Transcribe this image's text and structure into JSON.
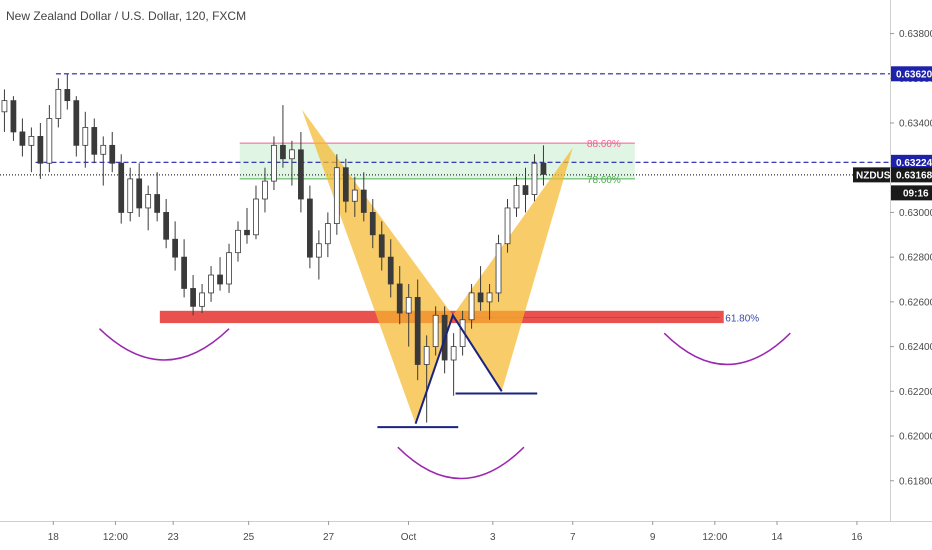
{
  "chart_data": {
    "type": "candlestick",
    "title": "New Zealand Dollar / U.S. Dollar, 120, FXCM",
    "symbol": "NZDUSD",
    "price_scale": {
      "range": [
        0.6162,
        0.6395
      ],
      "ticks": [
        "0.63800",
        "0.63600",
        "0.63400",
        "0.63200",
        "0.63000",
        "0.62800",
        "0.62600",
        "0.62400",
        "0.62200",
        "0.62000",
        "0.61800"
      ]
    },
    "x_range": [
      0,
      100
    ],
    "time_axis": [
      {
        "label": "18",
        "x": 6
      },
      {
        "label": "12:00",
        "x": 13
      },
      {
        "label": "23",
        "x": 19.5
      },
      {
        "label": "25",
        "x": 28
      },
      {
        "label": "27",
        "x": 37
      },
      {
        "label": "Oct",
        "x": 46
      },
      {
        "label": "3",
        "x": 55.5
      },
      {
        "label": "7",
        "x": 64.5
      },
      {
        "label": "9",
        "x": 73.5
      },
      {
        "label": "12:00",
        "x": 80.5
      },
      {
        "label": "14",
        "x": 87.5
      },
      {
        "label": "16",
        "x": 96.5
      }
    ],
    "price_tags": [
      {
        "label": "0.63620",
        "value": 0.6362,
        "color": "#1e22aa"
      },
      {
        "label": "0.63224",
        "value": 0.63224,
        "color": "#1e22aa"
      },
      {
        "label": "NZDUSD",
        "value": 0.63168,
        "color": "#1a1a1a"
      },
      {
        "label": "0.63168",
        "value": 0.63168,
        "color": "#1a1a1a"
      },
      {
        "label": "09:16",
        "value": 0.63168,
        "color": "#1a1a1a"
      }
    ],
    "levels": [
      {
        "name": "high",
        "value": 0.6362,
        "x_start": 6.3,
        "style": "dashed",
        "color": "#1e22aa"
      },
      {
        "name": "resistance",
        "value": 0.63224,
        "x_start": 4,
        "style": "dashed",
        "color": "#1e22aa"
      },
      {
        "name": "last-price",
        "value": 0.63168,
        "x_start": 0,
        "style": "dotted",
        "color": "#333333"
      },
      {
        "name": "fib-886",
        "value": 0.6331,
        "x_start": 27,
        "x_end": 71.5,
        "style": "solid",
        "color": "#f06292",
        "label": "88.60%"
      },
      {
        "name": "fib-786",
        "value": 0.6315,
        "x_start": 27,
        "x_end": 71.5,
        "style": "solid",
        "color": "#4caf50",
        "label": "78.60%"
      },
      {
        "name": "fib-618",
        "value": 0.6253,
        "x_start": 49.5,
        "x_end": 81,
        "style": "solid",
        "color": "#3949ab",
        "label": "61.80%"
      }
    ],
    "support_zone": {
      "x_start": 18,
      "x_end": 81.5,
      "y_top": 0.6256,
      "y_bottom": 0.62505,
      "color": "#e53935"
    },
    "bat_pattern": {
      "color": "#f5b82e",
      "left_wing": [
        [
          34,
          0.6346
        ],
        [
          46.8,
          0.62055
        ],
        [
          51,
          0.6254
        ]
      ],
      "right_wing": [
        [
          51,
          0.6254
        ],
        [
          56.5,
          0.622
        ],
        [
          64.5,
          0.6329
        ]
      ]
    },
    "inner_lines": [
      {
        "points": [
          [
            46.8,
            0.62055
          ],
          [
            51,
            0.6254
          ],
          [
            56.5,
            0.622
          ]
        ],
        "color": "#1a237e"
      },
      {
        "points": [
          [
            42.5,
            0.6204
          ],
          [
            51.6,
            0.6204
          ]
        ],
        "color": "#1a237e"
      },
      {
        "points": [
          [
            51.3,
            0.6219
          ],
          [
            60.5,
            0.6219
          ]
        ],
        "color": "#1a237e"
      }
    ],
    "arcs": [
      {
        "x_start": 11.2,
        "x_end": 25.8,
        "y_ends": 0.6248,
        "y_mid": 0.6234,
        "color": "#9c27b0"
      },
      {
        "x_start": 44.8,
        "x_end": 59,
        "y_ends": 0.6195,
        "y_mid": 0.6181,
        "color": "#9c27b0"
      },
      {
        "x_start": 74.8,
        "x_end": 89,
        "y_ends": 0.6246,
        "y_mid": 0.6232,
        "color": "#9c27b0"
      }
    ],
    "fib_box": {
      "x_start": 27,
      "x_end": 71.5,
      "y_top": 0.6331,
      "y_bottom": 0.6315,
      "color": "#c8ecd0"
    },
    "candles": [
      [
        0.6345,
        0.6355,
        0.6336,
        0.635
      ],
      [
        0.635,
        0.6352,
        0.6332,
        0.6336
      ],
      [
        0.6336,
        0.6342,
        0.6325,
        0.633
      ],
      [
        0.633,
        0.6338,
        0.6318,
        0.6334
      ],
      [
        0.6334,
        0.634,
        0.6315,
        0.6322
      ],
      [
        0.6322,
        0.6348,
        0.6318,
        0.6342
      ],
      [
        0.6342,
        0.636,
        0.6338,
        0.6355
      ],
      [
        0.6355,
        0.6362,
        0.6346,
        0.635
      ],
      [
        0.635,
        0.6352,
        0.6325,
        0.633
      ],
      [
        0.633,
        0.6345,
        0.632,
        0.6338
      ],
      [
        0.6338,
        0.6342,
        0.6322,
        0.6326
      ],
      [
        0.6326,
        0.6334,
        0.6312,
        0.633
      ],
      [
        0.633,
        0.6336,
        0.6318,
        0.6322
      ],
      [
        0.6322,
        0.6326,
        0.6295,
        0.63
      ],
      [
        0.63,
        0.632,
        0.6296,
        0.6315
      ],
      [
        0.6315,
        0.6322,
        0.6298,
        0.6302
      ],
      [
        0.6302,
        0.6312,
        0.6292,
        0.6308
      ],
      [
        0.6308,
        0.6318,
        0.6296,
        0.63
      ],
      [
        0.63,
        0.6306,
        0.6284,
        0.6288
      ],
      [
        0.6288,
        0.6296,
        0.6274,
        0.628
      ],
      [
        0.628,
        0.6288,
        0.6262,
        0.6266
      ],
      [
        0.6266,
        0.6272,
        0.6254,
        0.6258
      ],
      [
        0.6258,
        0.6268,
        0.6255,
        0.6264
      ],
      [
        0.6264,
        0.6276,
        0.626,
        0.6272
      ],
      [
        0.6272,
        0.628,
        0.6265,
        0.6268
      ],
      [
        0.6268,
        0.6286,
        0.6264,
        0.6282
      ],
      [
        0.6282,
        0.6296,
        0.6278,
        0.6292
      ],
      [
        0.6292,
        0.6302,
        0.6286,
        0.629
      ],
      [
        0.629,
        0.6312,
        0.6288,
        0.6306
      ],
      [
        0.6306,
        0.632,
        0.63,
        0.6314
      ],
      [
        0.6314,
        0.6334,
        0.631,
        0.633
      ],
      [
        0.633,
        0.6348,
        0.632,
        0.6324
      ],
      [
        0.6324,
        0.6332,
        0.6312,
        0.6328
      ],
      [
        0.6328,
        0.6336,
        0.63,
        0.6306
      ],
      [
        0.6306,
        0.6312,
        0.6275,
        0.628
      ],
      [
        0.628,
        0.6292,
        0.627,
        0.6286
      ],
      [
        0.6286,
        0.63,
        0.628,
        0.6295
      ],
      [
        0.6295,
        0.6326,
        0.629,
        0.632
      ],
      [
        0.632,
        0.6324,
        0.63,
        0.6305
      ],
      [
        0.6305,
        0.6316,
        0.6298,
        0.631
      ],
      [
        0.631,
        0.6318,
        0.6296,
        0.63
      ],
      [
        0.63,
        0.6306,
        0.6284,
        0.629
      ],
      [
        0.629,
        0.6296,
        0.6274,
        0.628
      ],
      [
        0.628,
        0.6288,
        0.6262,
        0.6268
      ],
      [
        0.6268,
        0.6276,
        0.625,
        0.6255
      ],
      [
        0.6255,
        0.6268,
        0.624,
        0.6262
      ],
      [
        0.6262,
        0.627,
        0.6225,
        0.6232
      ],
      [
        0.6232,
        0.6245,
        0.6206,
        0.624
      ],
      [
        0.624,
        0.6258,
        0.6236,
        0.6254
      ],
      [
        0.6254,
        0.6258,
        0.6228,
        0.6234
      ],
      [
        0.6234,
        0.6246,
        0.6218,
        0.624
      ],
      [
        0.624,
        0.6256,
        0.6236,
        0.6252
      ],
      [
        0.6252,
        0.6268,
        0.6248,
        0.6264
      ],
      [
        0.6264,
        0.6276,
        0.6256,
        0.626
      ],
      [
        0.626,
        0.6268,
        0.6252,
        0.6264
      ],
      [
        0.6264,
        0.629,
        0.626,
        0.6286
      ],
      [
        0.6286,
        0.6306,
        0.6282,
        0.6302
      ],
      [
        0.6302,
        0.6316,
        0.6298,
        0.6312
      ],
      [
        0.6312,
        0.632,
        0.63,
        0.6308
      ],
      [
        0.6308,
        0.6326,
        0.6305,
        0.6322
      ],
      [
        0.6322,
        0.633,
        0.6312,
        0.6317
      ]
    ]
  }
}
